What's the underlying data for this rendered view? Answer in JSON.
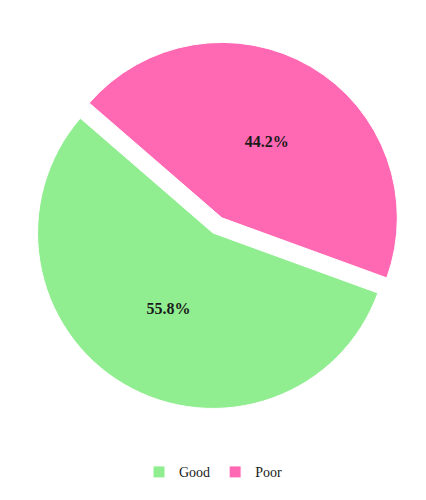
{
  "chart_data": {
    "type": "pie",
    "categories": [
      "Good",
      "Poor"
    ],
    "values": [
      55.8,
      44.2
    ],
    "value_labels": [
      "55.8%",
      "44.2%"
    ],
    "colors": [
      "#90EE90",
      "#FF69B4"
    ],
    "data_labels": true,
    "legend": "bottom"
  }
}
